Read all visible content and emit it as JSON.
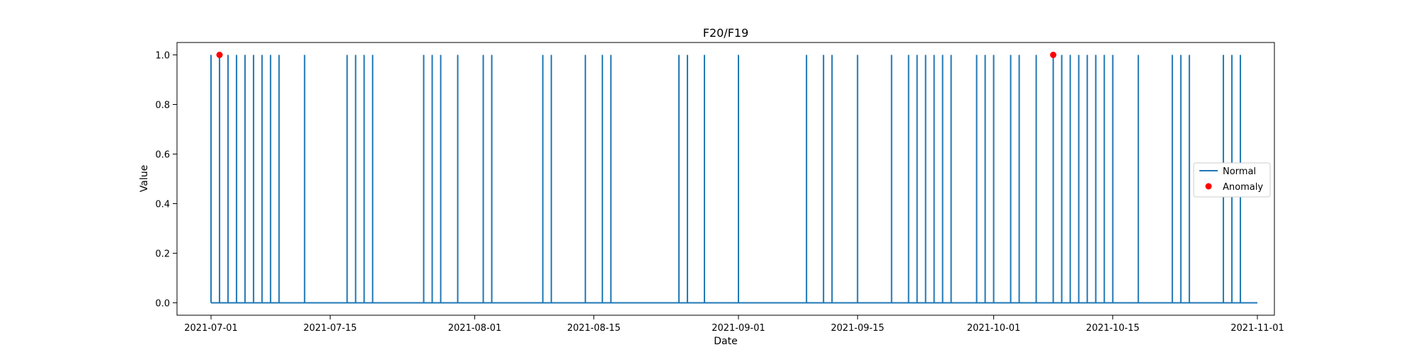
{
  "chart_data": {
    "type": "line",
    "title": "F20/F19",
    "xlabel": "Date",
    "ylabel": "Value",
    "x_range": [
      "2021-06-27",
      "2021-11-03"
    ],
    "ylim": [
      -0.05,
      1.05
    ],
    "x_ticks": [
      "2021-07-01",
      "2021-07-15",
      "2021-08-01",
      "2021-08-15",
      "2021-09-01",
      "2021-09-15",
      "2021-10-01",
      "2021-10-15",
      "2021-11-01"
    ],
    "y_ticks": [
      0.0,
      0.2,
      0.4,
      0.6,
      0.8,
      1.0
    ],
    "y_tick_labels": [
      "0.0",
      "0.2",
      "0.4",
      "0.6",
      "0.8",
      "1.0"
    ],
    "grid": false,
    "legend_position": "center-right",
    "series": [
      {
        "name": "Normal",
        "kind": "line",
        "color": "#1f77b4",
        "start": "2021-07-01",
        "end": "2021-11-01",
        "baseline": 0,
        "spike_value": 1,
        "spike_dates": [
          "2021-07-01",
          "2021-07-02",
          "2021-07-03",
          "2021-07-04",
          "2021-07-05",
          "2021-07-06",
          "2021-07-07",
          "2021-07-08",
          "2021-07-09",
          "2021-07-12",
          "2021-07-17",
          "2021-07-18",
          "2021-07-19",
          "2021-07-20",
          "2021-07-26",
          "2021-07-27",
          "2021-07-28",
          "2021-07-30",
          "2021-08-02",
          "2021-08-03",
          "2021-08-09",
          "2021-08-10",
          "2021-08-14",
          "2021-08-16",
          "2021-08-17",
          "2021-08-25",
          "2021-08-26",
          "2021-08-28",
          "2021-09-01",
          "2021-09-09",
          "2021-09-11",
          "2021-09-12",
          "2021-09-15",
          "2021-09-19",
          "2021-09-21",
          "2021-09-22",
          "2021-09-23",
          "2021-09-24",
          "2021-09-25",
          "2021-09-26",
          "2021-09-29",
          "2021-09-30",
          "2021-10-01",
          "2021-10-03",
          "2021-10-04",
          "2021-10-06",
          "2021-10-08",
          "2021-10-09",
          "2021-10-10",
          "2021-10-11",
          "2021-10-12",
          "2021-10-13",
          "2021-10-14",
          "2021-10-15",
          "2021-10-18",
          "2021-10-22",
          "2021-10-23",
          "2021-10-24",
          "2021-10-28",
          "2021-10-29",
          "2021-10-30"
        ]
      },
      {
        "name": "Anomaly",
        "kind": "scatter",
        "color": "#ff0000",
        "points": [
          {
            "x": "2021-07-02",
            "y": 1.0
          },
          {
            "x": "2021-10-08",
            "y": 1.0
          }
        ]
      }
    ]
  }
}
